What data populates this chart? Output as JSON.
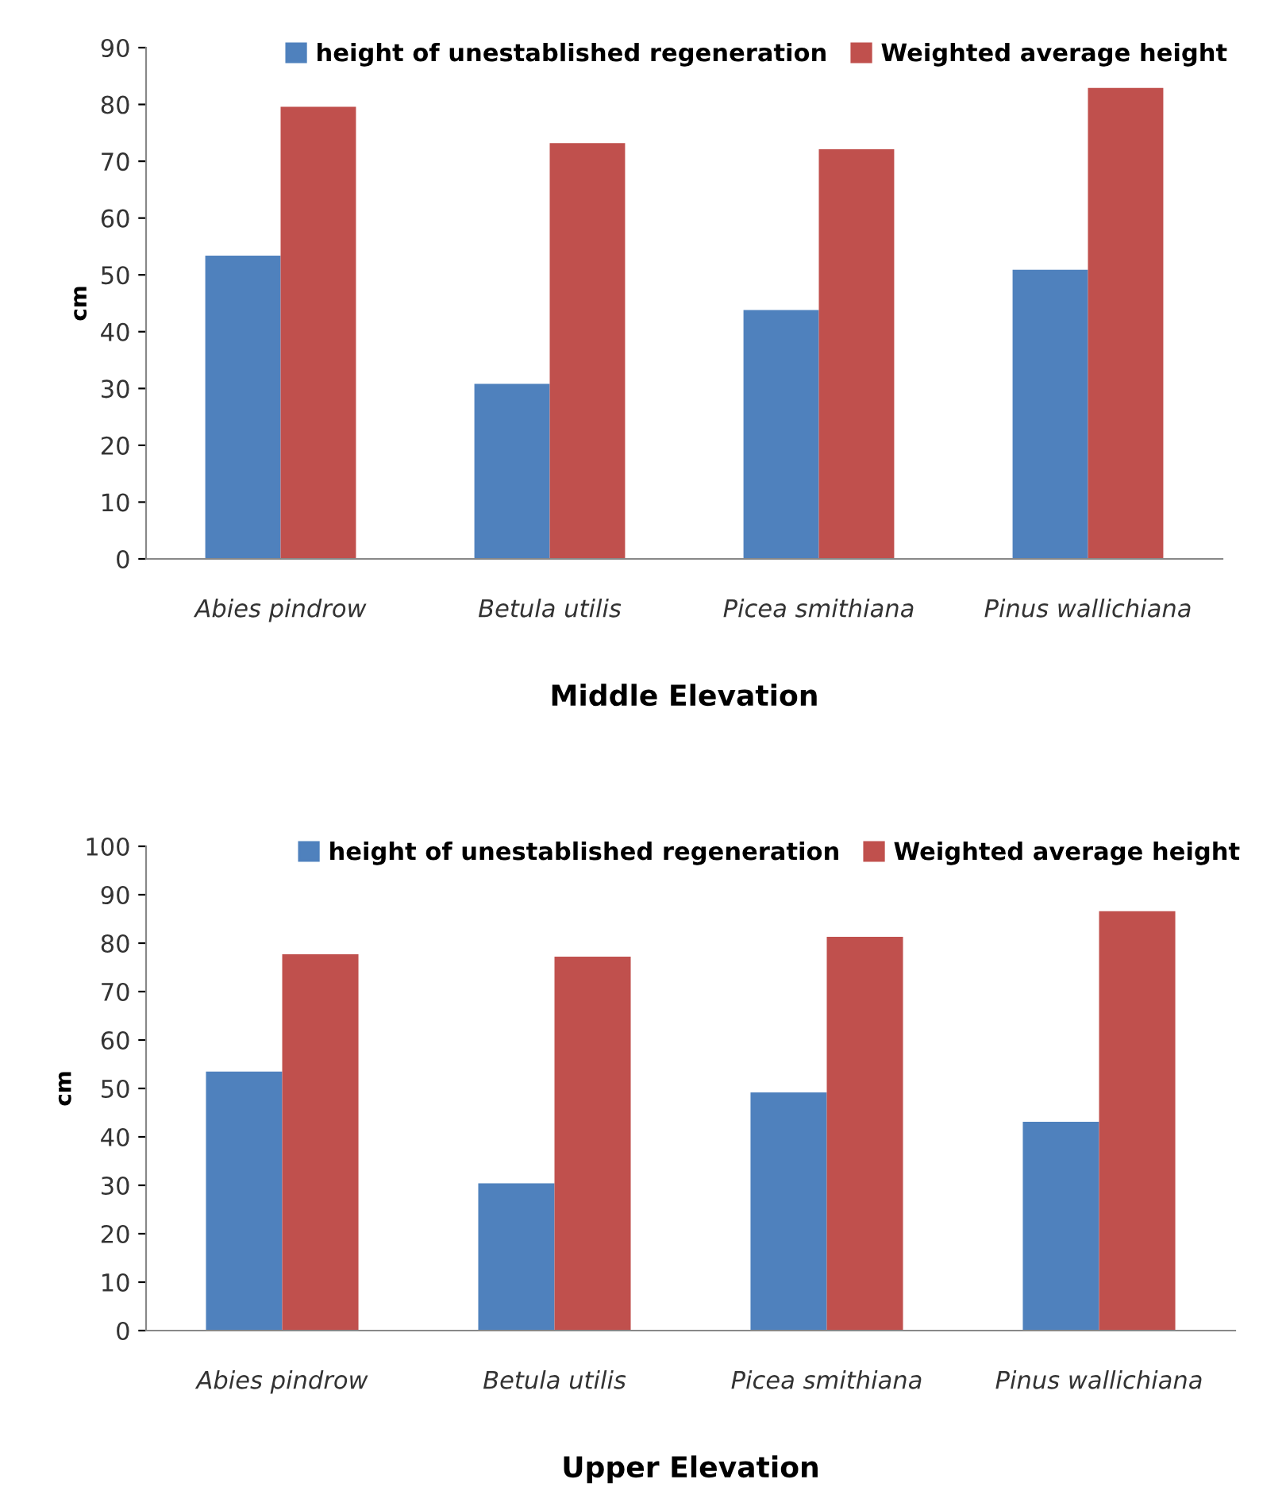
{
  "chart_data": [
    {
      "type": "bar",
      "xlabel": "Middle Elevation",
      "ylabel": "cm",
      "categories": [
        "Abies pindrow",
        "Betula utilis",
        "Picea smithiana",
        "Pinus wallichiana"
      ],
      "series": [
        {
          "name": "height of unestablished regeneration",
          "color": "#4f81bd",
          "values": [
            53.4,
            30.8,
            43.8,
            50.9
          ]
        },
        {
          "name": "Weighted average height",
          "color": "#c0504d",
          "values": [
            79.6,
            73.2,
            72.1,
            82.9
          ]
        }
      ],
      "ylim": [
        0,
        90
      ],
      "yticks": [
        0,
        10,
        20,
        30,
        40,
        50,
        60,
        70,
        80,
        90
      ],
      "grid": false,
      "legend": "top right"
    },
    {
      "type": "bar",
      "xlabel": "Upper Elevation",
      "ylabel": "cm",
      "categories": [
        "Abies pindrow",
        "Betula utilis",
        "Picea smithiana",
        "Pinus wallichiana"
      ],
      "series": [
        {
          "name": "height of unestablished regeneration",
          "color": "#4f81bd",
          "values": [
            53.5,
            30.4,
            49.2,
            43.1
          ]
        },
        {
          "name": "Weighted average height",
          "color": "#c0504d",
          "values": [
            77.7,
            77.2,
            81.3,
            86.6
          ]
        }
      ],
      "ylim": [
        0,
        100
      ],
      "yticks": [
        0,
        10,
        20,
        30,
        40,
        50,
        60,
        70,
        80,
        90,
        100
      ],
      "grid": false,
      "legend": "top right"
    }
  ]
}
